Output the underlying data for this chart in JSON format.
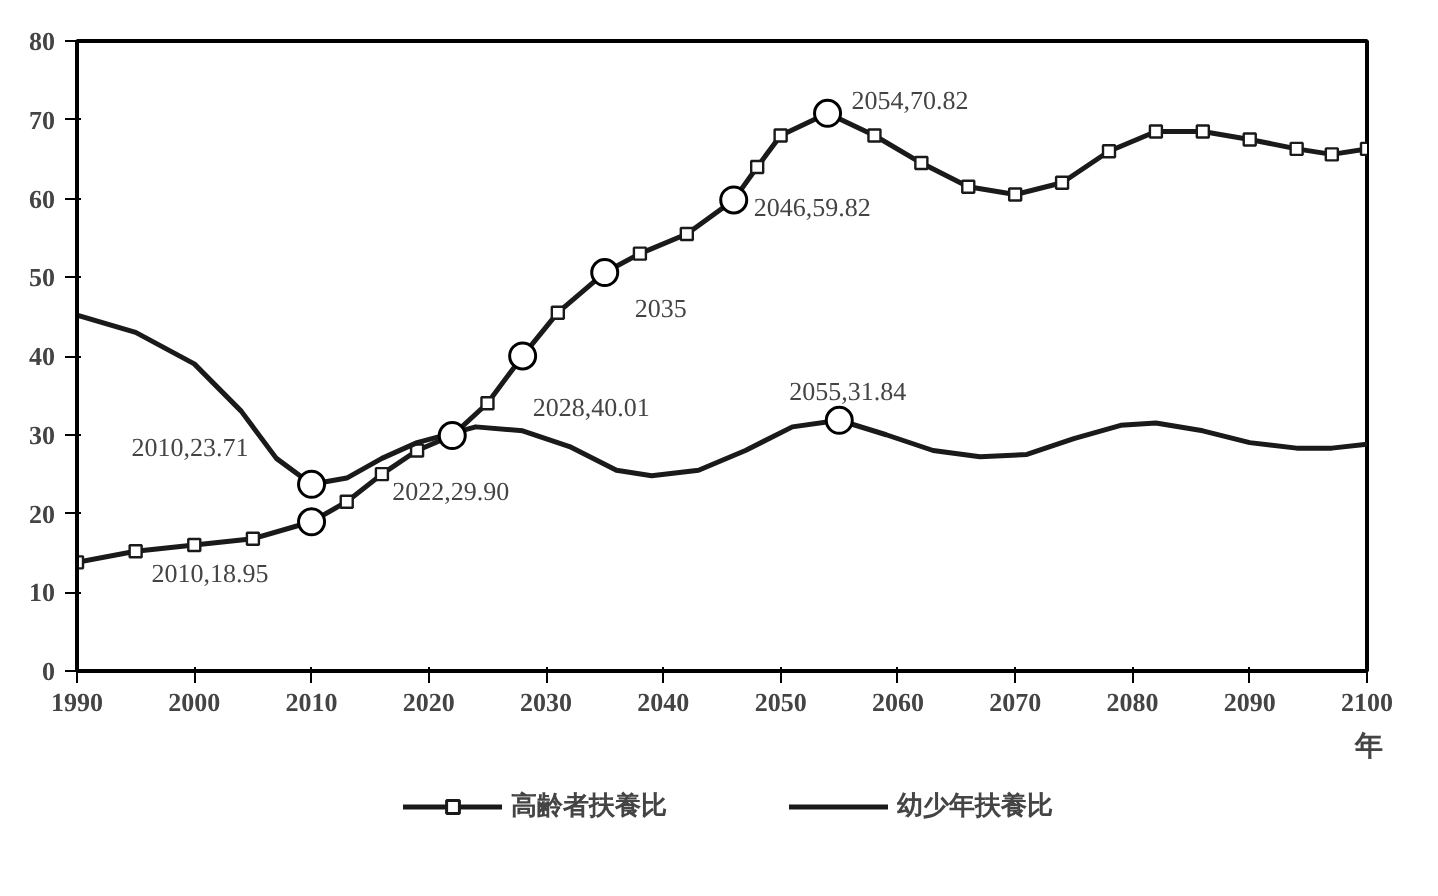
{
  "chart_data": {
    "type": "line",
    "xlabel": "年",
    "xlim": [
      1990,
      2100
    ],
    "ylim": [
      0,
      80
    ],
    "xticks": [
      1990,
      2000,
      2010,
      2020,
      2030,
      2040,
      2050,
      2060,
      2070,
      2080,
      2090,
      2100
    ],
    "yticks": [
      0,
      10,
      20,
      30,
      40,
      50,
      60,
      70,
      80
    ],
    "grid": false,
    "legend": "bottom",
    "line_style": "solid",
    "series": [
      {
        "name": "高齢者扶養比",
        "color": "#1a1a1a",
        "marker": "square",
        "x": [
          1990,
          1995,
          2000,
          2005,
          2010,
          2013,
          2016,
          2019,
          2022,
          2025,
          2028,
          2031,
          2035,
          2038,
          2042,
          2046,
          2048,
          2050,
          2054,
          2058,
          2062,
          2066,
          2070,
          2074,
          2078,
          2082,
          2086,
          2090,
          2094,
          2097,
          2100
        ],
        "values": [
          13.8,
          15.2,
          16.0,
          16.8,
          18.95,
          21.5,
          25,
          28,
          29.9,
          34,
          40.01,
          45.5,
          50.6,
          53,
          55.5,
          59.82,
          64,
          68,
          70.82,
          68,
          64.5,
          61.5,
          60.5,
          62,
          66,
          68.5,
          68.5,
          67.5,
          66.3,
          65.6,
          66.3
        ]
      },
      {
        "name": "幼少年扶養比",
        "color": "#1a1a1a",
        "marker": "none",
        "x": [
          1990,
          1995,
          2000,
          2004,
          2007,
          2010,
          2013,
          2016,
          2019,
          2024,
          2028,
          2032,
          2036,
          2039,
          2043,
          2047,
          2051,
          2055,
          2059,
          2063,
          2067,
          2071,
          2075,
          2079,
          2082,
          2086,
          2090,
          2094,
          2097,
          2100
        ],
        "values": [
          45.2,
          43,
          39,
          33,
          27,
          23.71,
          24.5,
          27,
          29,
          31,
          30.5,
          28.5,
          25.5,
          24.8,
          25.5,
          28,
          31,
          31.84,
          30,
          28,
          27.2,
          27.5,
          29.5,
          31.2,
          31.5,
          30.5,
          29,
          28.3,
          28.3,
          28.8
        ]
      }
    ],
    "annotations": [
      {
        "text": "2010,23.71",
        "x": 2010,
        "y": 23.71
      },
      {
        "text": "2010,18.95",
        "x": 2010,
        "y": 18.95
      },
      {
        "text": "2022,29.90",
        "x": 2022,
        "y": 29.9
      },
      {
        "text": "2028,40.01",
        "x": 2028,
        "y": 40.01
      },
      {
        "text": "2035",
        "x": 2035,
        "y": 50.6
      },
      {
        "text": "2046,59.82",
        "x": 2046,
        "y": 59.82
      },
      {
        "text": "2054,70.82",
        "x": 2054,
        "y": 70.82
      },
      {
        "text": "2055,31.84",
        "x": 2055,
        "y": 31.84
      }
    ]
  }
}
